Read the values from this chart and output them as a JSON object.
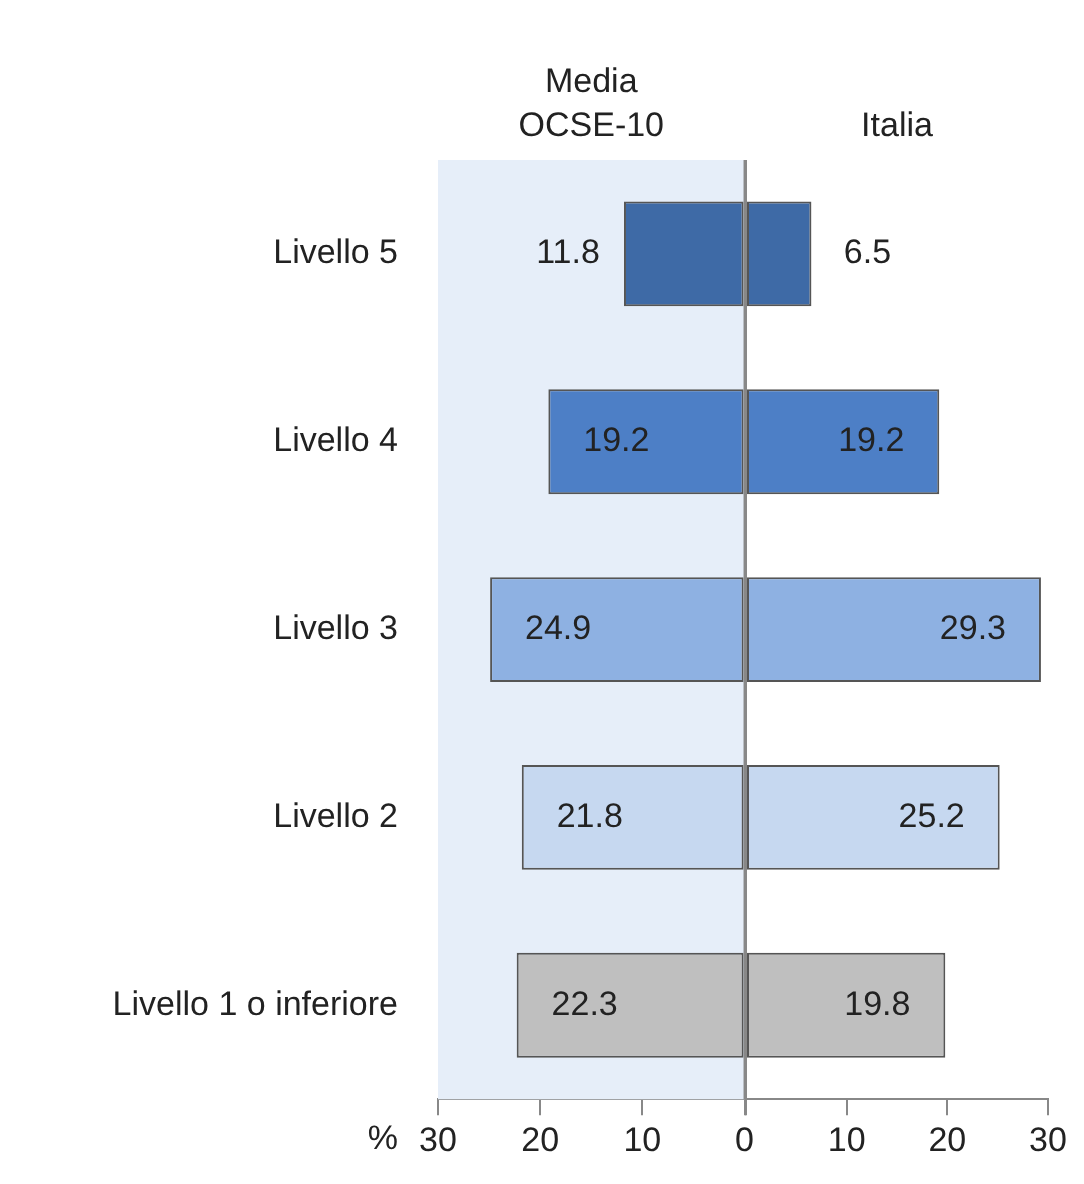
{
  "chart_data": [
    {
      "type": "bar",
      "orientation": "horizontal",
      "categories": [
        "Livello 5",
        "Livello 4",
        "Livello 3",
        "Livello 2",
        "Livello 1 o inferiore"
      ],
      "series": [
        {
          "name": "Media OCSE-10",
          "values": [
            11.8,
            19.2,
            24.9,
            21.8,
            22.3
          ],
          "colors": [
            "#3e6aa6",
            "#4d7fc6",
            "#8eb1e2",
            "#c6d8f0",
            "#bfbfbf"
          ],
          "value_labels": [
            "11.8",
            "19.2",
            "24.9",
            "21.8",
            "22.3"
          ]
        }
      ],
      "xlabel": "%",
      "xlim": [
        30,
        0
      ],
      "xticks": [
        30,
        20,
        10,
        0
      ],
      "bands": [
        {
          "axis": "x",
          "from": 30,
          "to": 0,
          "color": "#e6eef9"
        }
      ],
      "grid": false,
      "legend": false
    },
    {
      "type": "bar",
      "orientation": "horizontal",
      "categories": [
        null,
        null,
        null,
        null,
        null
      ],
      "series": [
        {
          "name": "Italia",
          "values": [
            6.5,
            19.2,
            29.3,
            25.2,
            19.8
          ],
          "colors": [
            "#3e6aa6",
            "#4d7fc6",
            "#8eb1e2",
            "#c6d8f0",
            "#bfbfbf"
          ],
          "value_labels": [
            "6.5",
            "19.2",
            "29.3",
            "25.2",
            "19.8"
          ]
        }
      ],
      "xlim": [
        0,
        30
      ],
      "xticks": [
        {
          "value": 0,
          "label": null
        },
        10,
        20,
        30
      ],
      "tick_labels": "x",
      "grid": false,
      "legend": false
    }
  ]
}
